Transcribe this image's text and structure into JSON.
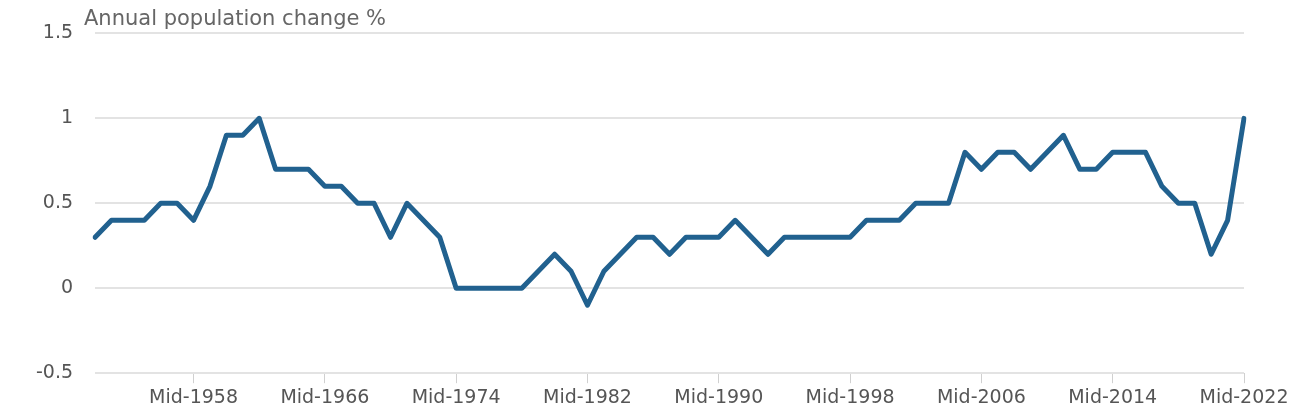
{
  "chart_data": {
    "type": "line",
    "title": "Annual population change %",
    "categories": [
      null,
      null,
      null,
      null,
      null,
      null,
      "Mid-1958",
      null,
      null,
      null,
      null,
      null,
      null,
      null,
      "Mid-1966",
      null,
      null,
      null,
      null,
      null,
      null,
      null,
      "Mid-1974",
      null,
      null,
      null,
      null,
      null,
      null,
      null,
      "Mid-1982",
      null,
      null,
      null,
      null,
      null,
      null,
      null,
      "Mid-1990",
      null,
      null,
      null,
      null,
      null,
      null,
      null,
      "Mid-1998",
      null,
      null,
      null,
      null,
      null,
      null,
      null,
      "Mid-2006",
      null,
      null,
      null,
      null,
      null,
      null,
      null,
      "Mid-2014",
      null,
      null,
      null,
      null,
      null,
      null,
      null,
      "Mid-2022"
    ],
    "series": [
      {
        "color": "#21618f",
        "values": [
          0.3,
          0.4,
          0.4,
          0.4,
          0.5,
          0.5,
          0.4,
          0.6,
          0.9,
          0.9,
          1.0,
          0.7,
          0.7,
          0.7,
          0.6,
          0.6,
          0.5,
          0.5,
          0.3,
          0.5,
          0.4,
          0.3,
          0.0,
          0.0,
          0.0,
          0.0,
          0.0,
          0.1,
          0.2,
          0.1,
          -0.1,
          0.1,
          0.2,
          0.3,
          0.3,
          0.2,
          0.3,
          0.3,
          0.3,
          0.4,
          0.3,
          0.2,
          0.3,
          0.3,
          0.3,
          0.3,
          0.3,
          0.4,
          0.4,
          0.4,
          0.5,
          0.5,
          0.5,
          0.8,
          0.7,
          0.8,
          0.8,
          0.7,
          0.8,
          0.9,
          0.7,
          0.7,
          0.8,
          0.8,
          0.8,
          0.6,
          0.5,
          0.5,
          0.2,
          0.4,
          1.0
        ]
      }
    ],
    "ylim": [
      -0.5,
      1.5
    ],
    "yticks": [
      -0.5,
      0,
      0.5,
      1,
      1.5
    ],
    "grid": "y",
    "marker": "none",
    "line_style": "solid",
    "legend": false
  }
}
